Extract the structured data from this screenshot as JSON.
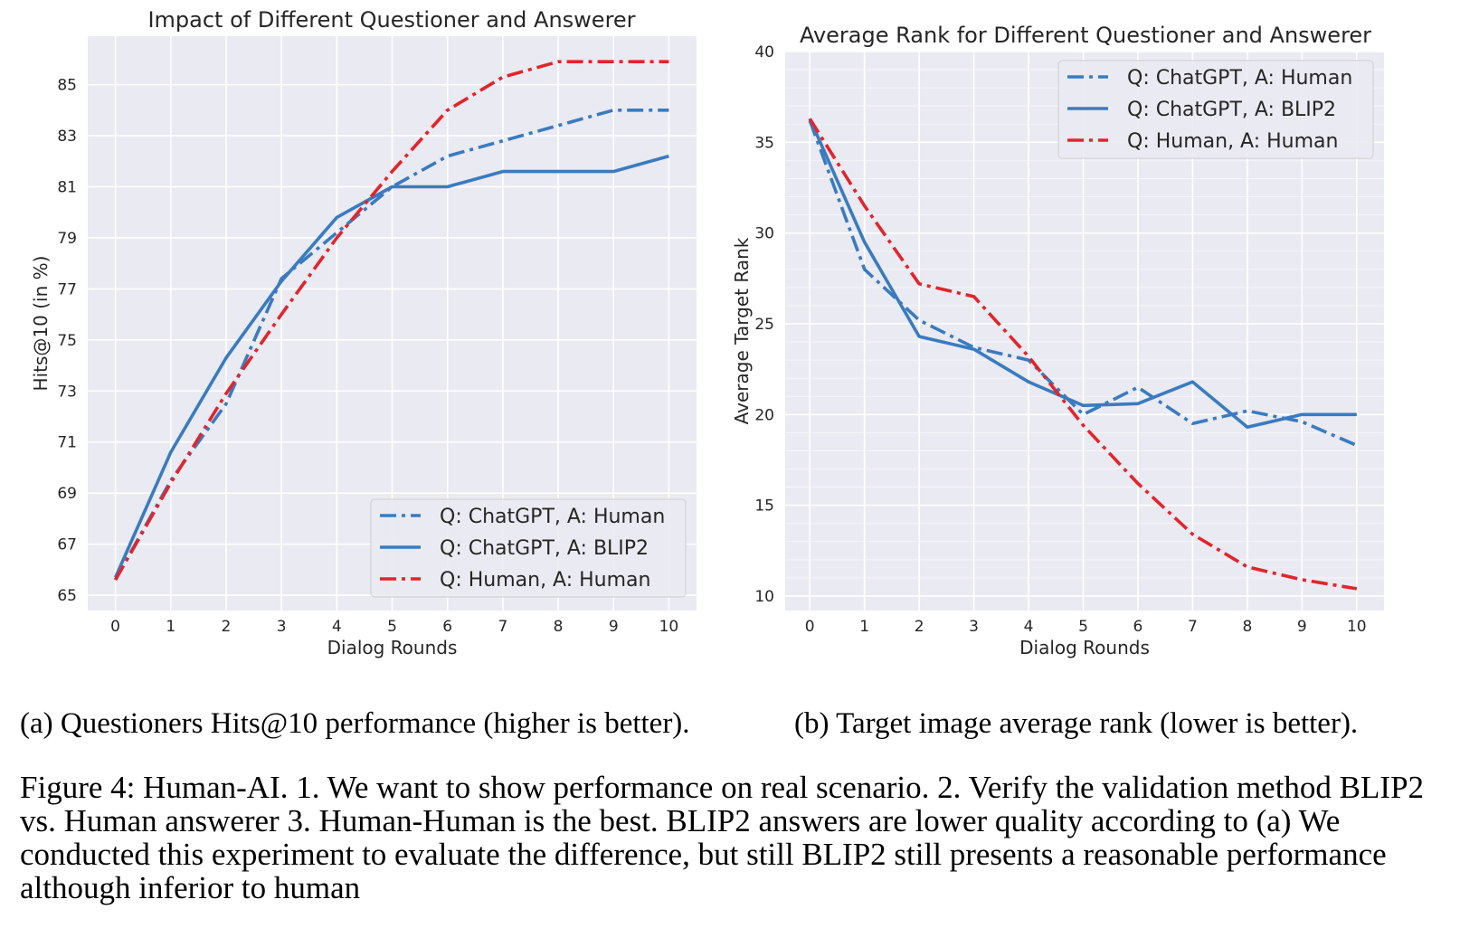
{
  "chart_data": [
    {
      "type": "line",
      "title": "Impact of Different Questioner and Answerer",
      "xlabel": "Dialog Rounds",
      "ylabel": "Hits@10 (in %)",
      "x": [
        0,
        1,
        2,
        3,
        4,
        5,
        6,
        7,
        8,
        9,
        10
      ],
      "xticks": [
        "0",
        "1",
        "2",
        "3",
        "4",
        "5",
        "6",
        "7",
        "8",
        "9",
        "10"
      ],
      "yticks": [
        65,
        67,
        69,
        71,
        73,
        75,
        77,
        79,
        81,
        83,
        85
      ],
      "ylim": [
        64.4,
        86.9
      ],
      "grid": true,
      "legend_position": "lower-right",
      "series": [
        {
          "name": "Q: ChatGPT, A: Human",
          "style": "dashdot",
          "color": "#3a7bbf",
          "values": [
            65.6,
            69.5,
            72.5,
            77.4,
            79.2,
            81.0,
            82.2,
            82.8,
            83.4,
            84.0,
            84.0
          ]
        },
        {
          "name": "Q: ChatGPT, A: BLIP2",
          "style": "solid",
          "color": "#3a7bbf",
          "values": [
            65.7,
            70.6,
            74.3,
            77.3,
            79.8,
            81.0,
            81.0,
            81.6,
            81.6,
            81.6,
            82.2
          ]
        },
        {
          "name": "Q: Human, A: Human",
          "style": "dashdot",
          "color": "#e3242b",
          "values": [
            65.6,
            69.4,
            72.9,
            76.0,
            79.0,
            81.6,
            84.0,
            85.3,
            85.9,
            85.9,
            85.9
          ]
        }
      ]
    },
    {
      "type": "line",
      "title": "Average Rank for Different Questioner and Answerer",
      "xlabel": "Dialog Rounds",
      "ylabel": "Average Target Rank",
      "x": [
        0,
        1,
        2,
        3,
        4,
        5,
        6,
        7,
        8,
        9,
        10
      ],
      "xticks": [
        "0",
        "1",
        "2",
        "3",
        "4",
        "5",
        "6",
        "7",
        "8",
        "9",
        "10"
      ],
      "yticks": [
        10,
        15,
        20,
        25,
        30,
        35,
        40
      ],
      "ylim": [
        9.2,
        40.0
      ],
      "grid": true,
      "legend_position": "upper-right",
      "series": [
        {
          "name": "Q: ChatGPT, A: Human",
          "style": "dashdot",
          "color": "#3a7bbf",
          "values": [
            36.2,
            28.0,
            25.2,
            23.7,
            23.0,
            20.0,
            21.5,
            19.5,
            20.2,
            19.6,
            18.3
          ]
        },
        {
          "name": "Q: ChatGPT, A: BLIP2",
          "style": "solid",
          "color": "#3a7bbf",
          "values": [
            36.3,
            29.5,
            24.3,
            23.6,
            21.8,
            20.5,
            20.6,
            21.8,
            19.3,
            20.0,
            20.0
          ]
        },
        {
          "name": "Q: Human, A: Human",
          "style": "dashdot",
          "color": "#e3242b",
          "values": [
            36.3,
            31.5,
            27.2,
            26.5,
            23.2,
            19.4,
            16.2,
            13.4,
            11.6,
            10.9,
            10.4
          ]
        }
      ]
    }
  ],
  "captions": {
    "a": "(a) Questioners Hits@10 performance (higher is better).",
    "b": "(b) Target image average rank (lower is better).",
    "figure": "Figure 4: Human-AI. 1. We want to show performance on real scenario. 2. Verify the validation method BLIP2 vs. Human answerer 3. Human-Human is the best. BLIP2 answers are lower quality according to (a) We conducted this experiment to evaluate the difference, but still BLIP2 still presents a reasonable performance although inferior to human"
  }
}
